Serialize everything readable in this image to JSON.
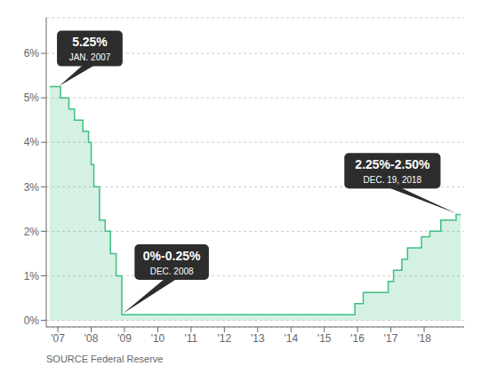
{
  "chart_data": {
    "type": "area",
    "source": "SOURCE Federal Reserve",
    "x": [
      2006.75,
      2007.08,
      2007.08,
      2007.33,
      2007.33,
      2007.5,
      2007.5,
      2007.75,
      2007.75,
      2007.92,
      2007.92,
      2008.0,
      2008.0,
      2008.08,
      2008.08,
      2008.25,
      2008.25,
      2008.42,
      2008.42,
      2008.58,
      2008.58,
      2008.75,
      2008.75,
      2008.92,
      2008.92,
      2015.92,
      2015.92,
      2016.17,
      2016.17,
      2016.92,
      2016.92,
      2017.08,
      2017.08,
      2017.33,
      2017.33,
      2017.5,
      2017.5,
      2017.92,
      2017.92,
      2018.17,
      2018.17,
      2018.5,
      2018.5,
      2018.75,
      2018.96,
      2018.96,
      2019.1
    ],
    "values": [
      5.25,
      5.25,
      5.0,
      5.0,
      4.75,
      4.75,
      4.5,
      4.5,
      4.25,
      4.25,
      4.0,
      4.0,
      3.5,
      3.5,
      3.0,
      3.0,
      2.25,
      2.25,
      2.0,
      2.0,
      1.5,
      1.5,
      1.0,
      1.0,
      0.125,
      0.125,
      0.375,
      0.375,
      0.625,
      0.625,
      0.875,
      0.875,
      1.125,
      1.125,
      1.375,
      1.375,
      1.625,
      1.625,
      1.875,
      1.875,
      2.0,
      2.0,
      2.25,
      2.25,
      2.25,
      2.375,
      2.375
    ],
    "color": "#3dbf7f",
    "xlim": [
      2006.65,
      2019.2
    ],
    "ylim": [
      -0.15,
      6.8
    ],
    "xticks": [
      {
        "value": 2007,
        "label": "'07"
      },
      {
        "value": 2008,
        "label": "'08"
      },
      {
        "value": 2009,
        "label": "'09"
      },
      {
        "value": 2010,
        "label": "'10"
      },
      {
        "value": 2011,
        "label": "'11"
      },
      {
        "value": 2012,
        "label": "'12"
      },
      {
        "value": 2013,
        "label": "'13"
      },
      {
        "value": 2014,
        "label": "'14"
      },
      {
        "value": 2015,
        "label": "'15"
      },
      {
        "value": 2016,
        "label": "'16"
      },
      {
        "value": 2017,
        "label": "'17"
      },
      {
        "value": 2018,
        "label": "'18"
      }
    ],
    "yticks": [
      {
        "value": 0,
        "label": "0%"
      },
      {
        "value": 1,
        "label": "1%"
      },
      {
        "value": 2,
        "label": "2%"
      },
      {
        "value": 3,
        "label": "3%"
      },
      {
        "value": 4,
        "label": "4%"
      },
      {
        "value": 5,
        "label": "5%"
      },
      {
        "value": 6,
        "label": "6%"
      }
    ],
    "grid": "y",
    "annotations": [
      {
        "text": "5.25%",
        "subtext": "JAN. 2007",
        "x": 2007.05,
        "y": 5.27
      },
      {
        "text": "0%-0.25%",
        "subtext": "DEC. 2008",
        "x": 2008.95,
        "y": 0.15
      },
      {
        "text": "2.25%-2.50%",
        "subtext": "DEC. 19, 2018",
        "x": 2018.97,
        "y": 2.4
      }
    ]
  }
}
